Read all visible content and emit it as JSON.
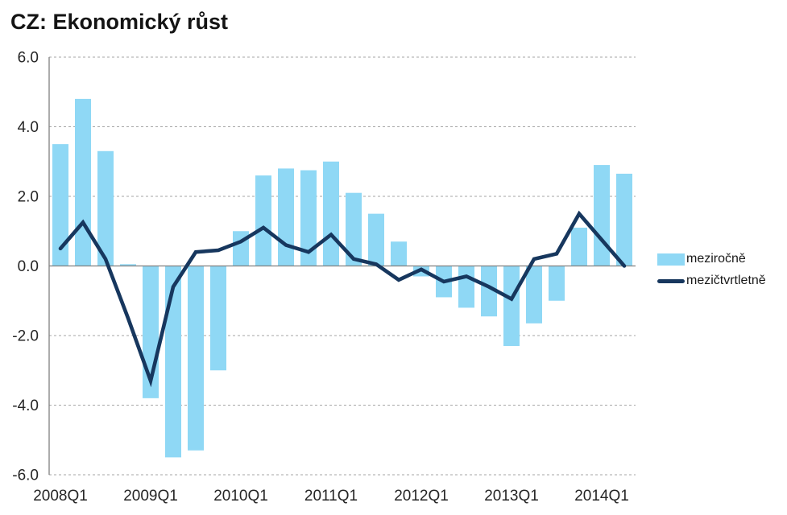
{
  "title": "CZ: Ekonomický růst",
  "legend": {
    "items": [
      {
        "label": "meziročně",
        "marker": "bar-swatch",
        "color": "#8FD8F5"
      },
      {
        "label": "mezičtvrtletně",
        "marker": "line-swatch",
        "color": "#17375E"
      }
    ]
  },
  "chart_data": {
    "type": "bar",
    "subtype": "combo-bar-and-line",
    "title": "CZ: Ekonomický růst",
    "xlabel": "",
    "ylabel": "",
    "ylim": [
      -6.0,
      6.0
    ],
    "yticks": [
      6.0,
      4.0,
      2.0,
      0.0,
      -2.0,
      -4.0,
      -6.0
    ],
    "ytick_labels": [
      "6.0",
      "4.0",
      "2.0",
      "0.0",
      "-2.0",
      "-4.0",
      "-6.0"
    ],
    "grid": "dashed-horizontal",
    "legend_position": "right",
    "categories": [
      "2008Q1",
      "2008Q2",
      "2008Q3",
      "2008Q4",
      "2009Q1",
      "2009Q2",
      "2009Q3",
      "2009Q4",
      "2010Q1",
      "2010Q2",
      "2010Q3",
      "2010Q4",
      "2011Q1",
      "2011Q2",
      "2011Q3",
      "2011Q4",
      "2012Q1",
      "2012Q2",
      "2012Q3",
      "2012Q4",
      "2013Q1",
      "2013Q2",
      "2013Q3",
      "2013Q4",
      "2014Q1",
      "2014Q2"
    ],
    "x_tick_labels": [
      "2008Q1",
      "2009Q1",
      "2010Q1",
      "2011Q1",
      "2012Q1",
      "2013Q1",
      "2014Q1"
    ],
    "x_tick_every": 4,
    "series": [
      {
        "name": "meziročně",
        "type": "bar",
        "color": "#8FD8F5",
        "values": [
          3.5,
          4.8,
          3.3,
          0.05,
          -3.8,
          -5.5,
          -5.3,
          -3.0,
          1.0,
          2.6,
          2.8,
          2.75,
          3.0,
          2.1,
          1.5,
          0.7,
          -0.3,
          -0.9,
          -1.2,
          -1.45,
          -2.3,
          -1.65,
          -1.0,
          1.1,
          2.9,
          2.65
        ]
      },
      {
        "name": "mezičtvrtletně",
        "type": "line",
        "color": "#17375E",
        "values": [
          0.5,
          1.25,
          0.2,
          -1.5,
          -3.3,
          -0.6,
          0.4,
          0.45,
          0.7,
          1.1,
          0.6,
          0.4,
          0.9,
          0.2,
          0.05,
          -0.4,
          -0.1,
          -0.45,
          -0.3,
          -0.6,
          -0.95,
          0.2,
          0.35,
          1.5,
          0.75,
          0.0
        ]
      }
    ],
    "colors": {
      "gridline": "#A6A6A6",
      "axis": "#808080",
      "tick_text": "#262626",
      "background": "#FFFFFF"
    }
  }
}
